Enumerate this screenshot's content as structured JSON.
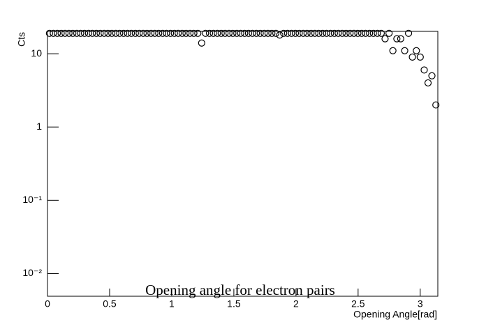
{
  "chart_data": {
    "type": "scatter",
    "title": "Opening angle for electron pairs",
    "x_label": "Opening Angle[rad]",
    "y_label": "Cts",
    "log_y": true,
    "marker": "open-circle",
    "color": "#000000",
    "x": [
      0.016,
      0.047,
      0.079,
      0.11,
      0.141,
      0.173,
      0.204,
      0.236,
      0.267,
      0.298,
      0.33,
      0.361,
      0.393,
      0.424,
      0.456,
      0.487,
      0.518,
      0.55,
      0.581,
      0.613,
      0.644,
      0.675,
      0.707,
      0.738,
      0.77,
      0.801,
      0.833,
      0.864,
      0.895,
      0.927,
      0.958,
      0.99,
      1.021,
      1.052,
      1.084,
      1.115,
      1.147,
      1.178,
      1.21,
      1.241,
      1.272,
      1.304,
      1.335,
      1.367,
      1.398,
      1.429,
      1.461,
      1.492,
      1.524,
      1.555,
      1.587,
      1.618,
      1.649,
      1.681,
      1.712,
      1.744,
      1.775,
      1.806,
      1.838,
      1.869,
      1.901,
      1.932,
      1.964,
      1.995,
      2.026,
      2.058,
      2.089,
      2.121,
      2.152,
      2.183,
      2.215,
      2.246,
      2.278,
      2.309,
      2.34,
      2.372,
      2.403,
      2.435,
      2.466,
      2.498,
      2.529,
      2.56,
      2.592,
      2.623,
      2.655,
      2.686,
      2.717,
      2.749,
      2.78,
      2.812,
      2.843,
      2.875,
      2.906,
      2.937,
      2.969,
      3.0,
      3.032,
      3.063,
      3.094,
      3.126
    ],
    "values": [
      19,
      19,
      19,
      19,
      19,
      19,
      19,
      19,
      19,
      19,
      19,
      19,
      19,
      19,
      19,
      19,
      19,
      19,
      19,
      19,
      19,
      19,
      19,
      19,
      19,
      19,
      19,
      19,
      19,
      19,
      19,
      19,
      19,
      19,
      19,
      19,
      19,
      19,
      19,
      14,
      19,
      19,
      19,
      19,
      19,
      19,
      19,
      19,
      19,
      19,
      19,
      19,
      19,
      19,
      19,
      19,
      19,
      19,
      19,
      18,
      19,
      19,
      19,
      19,
      19,
      19,
      19,
      19,
      19,
      19,
      19,
      19,
      19,
      19,
      19,
      19,
      19,
      19,
      19,
      19,
      19,
      19,
      19,
      19,
      19,
      19,
      16,
      19,
      11,
      16,
      16,
      11,
      19,
      9,
      11,
      9,
      6,
      4,
      5,
      2
    ],
    "xlim": [
      0,
      3.1416
    ],
    "xticks": [
      0,
      0.5,
      1,
      1.5,
      2,
      2.5,
      3
    ],
    "ylim": [
      0.0049,
      20.2
    ],
    "yticks": [
      {
        "value": 0.01,
        "label": "10⁻²"
      },
      {
        "value": 0.1,
        "label": "10⁻¹"
      },
      1,
      10
    ]
  }
}
